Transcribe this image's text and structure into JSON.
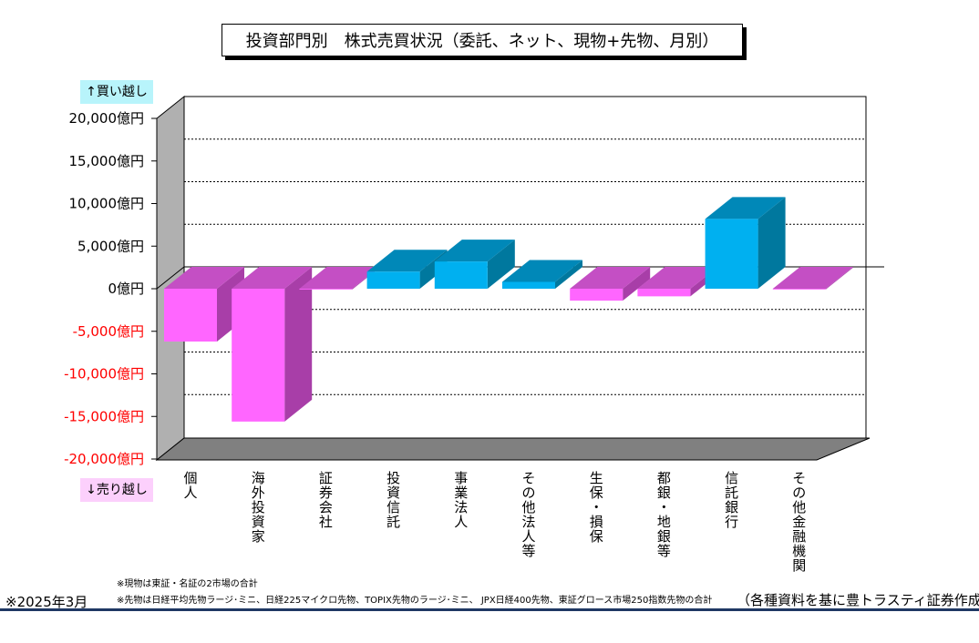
{
  "title": "投資部門別　株式売買状況（委託、ネット、現物+先物、月別）",
  "buy_label": "↑買い越し",
  "sell_label": "↓売り越し",
  "notes": [
    "※現物は東証・名証の2市場の合計",
    "※先物は日経平均先物ラージ･ミニ、日経225マイクロ先物、TOPIX先物のラージ･ミニ、 JPX日経400先物、東証グロース市場250指数先物の合計"
  ],
  "date": "※2025年3月",
  "source": "（各種資料を基に豊トラスティ証券作成）",
  "colors": {
    "positive_front": "#00b0f0",
    "positive_top": "#0088b8",
    "positive_side": "#00789e",
    "negative_front": "#ff66ff",
    "negative_top": "#c44fc4",
    "negative_side": "#a83ea8",
    "negative_tick": "#ff0000",
    "wall": "#b0b0b0",
    "floor": "#808080"
  },
  "chart_data": {
    "type": "bar",
    "categories": [
      "個人",
      "海外投資家",
      "証券会社",
      "投資信託",
      "事業法人",
      "その他法人等",
      "生保・損保",
      "都銀・地銀等",
      "信託銀行",
      "その他金融機関"
    ],
    "values": [
      -6200,
      -15600,
      -100,
      2000,
      3200,
      800,
      -1400,
      -900,
      8200,
      -100
    ],
    "yticks": [
      "20,000億円",
      "15,000億円",
      "10,000億円",
      "5,000億円",
      "0億円",
      "-5,000億円",
      "-10,000億円",
      "-15,000億円",
      "-20,000億円"
    ],
    "ylim": [
      -20000,
      20000
    ],
    "grid": true,
    "ylabel": "",
    "xlabel": ""
  }
}
